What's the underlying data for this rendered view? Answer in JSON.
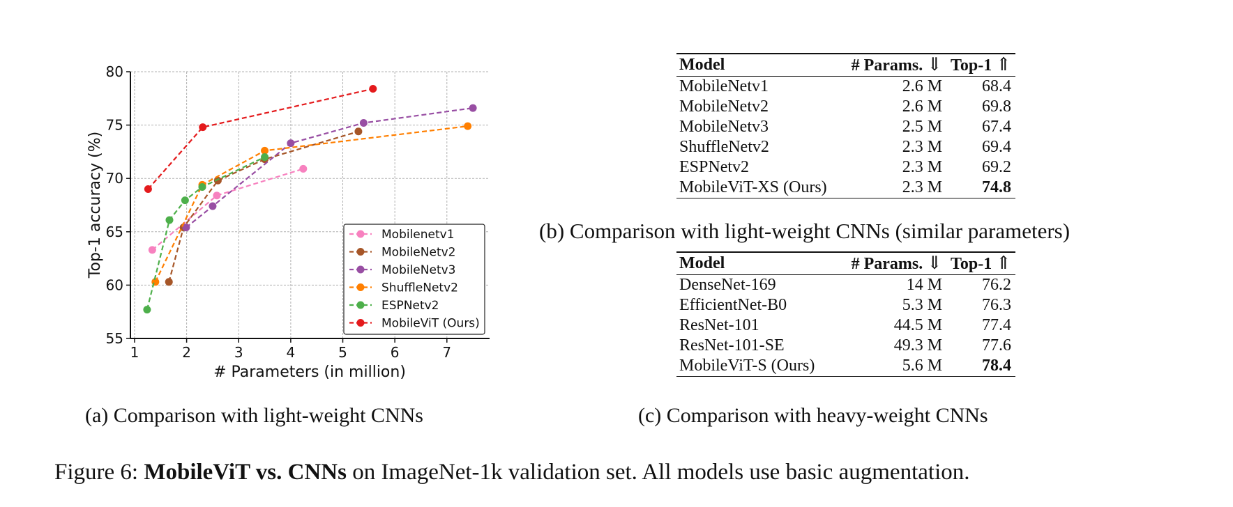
{
  "chart_data": {
    "type": "line",
    "title": "",
    "xlabel": "# Parameters (in million)",
    "ylabel": "Top-1 accuracy (%)",
    "xlim": [
      0.92,
      7.82
    ],
    "ylim": [
      55,
      80
    ],
    "xticks": [
      1,
      2,
      3,
      4,
      5,
      6,
      7
    ],
    "yticks": [
      55,
      60,
      65,
      70,
      75,
      80
    ],
    "grid": true,
    "line_style": "dashed",
    "marker": "circle",
    "legend_position": "lower-right",
    "series": [
      {
        "name": "Mobilenetv1",
        "color": "#f781bf",
        "x": [
          1.34,
          2.58,
          4.24
        ],
        "y": [
          63.3,
          68.4,
          70.9
        ]
      },
      {
        "name": "MobileNetv2",
        "color": "#a65628",
        "x": [
          1.66,
          1.94,
          2.6,
          3.5,
          5.3
        ],
        "y": [
          60.3,
          65.4,
          69.8,
          71.8,
          74.4
        ]
      },
      {
        "name": "MobileNetv3",
        "color": "#984ea3",
        "x": [
          1.99,
          2.5,
          4.0,
          5.4,
          7.5
        ],
        "y": [
          65.4,
          67.4,
          73.3,
          75.2,
          76.6
        ]
      },
      {
        "name": "ShuffleNetv2",
        "color": "#ff7f00",
        "x": [
          1.4,
          2.3,
          3.5,
          7.4
        ],
        "y": [
          60.3,
          69.4,
          72.6,
          74.9
        ]
      },
      {
        "name": "ESPNetv2",
        "color": "#4daf4a",
        "x": [
          1.24,
          1.67,
          1.97,
          2.3,
          3.5
        ],
        "y": [
          57.7,
          66.1,
          67.95,
          69.2,
          72.0
        ]
      },
      {
        "name": "MobileViT (Ours)",
        "color": "#e41a1c",
        "x": [
          1.26,
          2.31,
          5.58
        ],
        "y": [
          69.0,
          74.8,
          78.4
        ]
      }
    ]
  },
  "table_b": {
    "headers": {
      "model": "Model",
      "params": "# Params.",
      "params_arrow": "⇓",
      "top1": "Top-1",
      "top1_arrow": "⇑"
    },
    "rows": [
      {
        "model": "MobileNetv1",
        "params": "2.6 M",
        "top1": "68.4"
      },
      {
        "model": "MobileNetv2",
        "params": "2.6 M",
        "top1": "69.8"
      },
      {
        "model": "MobileNetv3",
        "params": "2.5 M",
        "top1": "67.4"
      },
      {
        "model": "ShuffleNetv2",
        "params": "2.3 M",
        "top1": "69.4"
      },
      {
        "model": "ESPNetv2",
        "params": "2.3 M",
        "top1": "69.2"
      },
      {
        "model": "MobileViT-XS (Ours)",
        "params": "2.3 M",
        "top1": "74.8"
      }
    ]
  },
  "table_c": {
    "headers": {
      "model": "Model",
      "params": "# Params.",
      "params_arrow": "⇓",
      "top1": "Top-1",
      "top1_arrow": "⇑"
    },
    "rows": [
      {
        "model": "DenseNet-169",
        "params": "14 M",
        "top1": "76.2"
      },
      {
        "model": "EfficientNet-B0",
        "params": "5.3 M",
        "top1": "76.3"
      },
      {
        "model": "ResNet-101",
        "params": "44.5 M",
        "top1": "77.4"
      },
      {
        "model": "ResNet-101-SE",
        "params": "49.3 M",
        "top1": "77.6"
      },
      {
        "model": "MobileViT-S (Ours)",
        "params": "5.6 M",
        "top1": "78.4"
      }
    ]
  },
  "captions": {
    "a": "(a) Comparison with light-weight CNNs",
    "b": "(b) Comparison with light-weight CNNs (similar parameters)",
    "c": "(c) Comparison with heavy-weight CNNs",
    "figure_label": "Figure 6:",
    "figure_bold": "MobileViT vs. CNNs",
    "figure_rest": "on ImageNet-1k validation set. All models use basic augmentation."
  }
}
